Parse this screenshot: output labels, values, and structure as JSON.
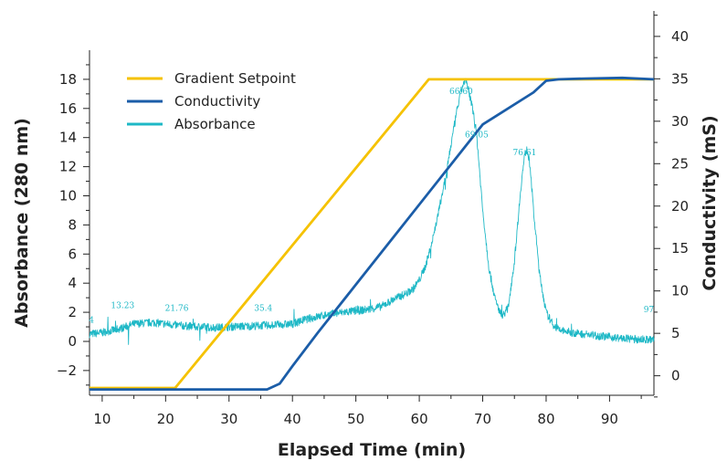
{
  "chart_data": {
    "type": "line",
    "xlabel": "Elapsed Time (min)",
    "ylabel_left": "Absorbance (280 nm)",
    "ylabel_right": "Conductivity (mS)",
    "xlim": [
      8,
      97
    ],
    "ylim_left": [
      -3.7,
      20
    ],
    "ylim_right": [
      -2.3,
      43
    ],
    "x_ticks": [
      10,
      20,
      30,
      40,
      50,
      60,
      70,
      80,
      90
    ],
    "y_ticks_left": [
      -2,
      0,
      2,
      4,
      6,
      8,
      10,
      12,
      14,
      16,
      18
    ],
    "y_ticks_right": [
      0,
      5,
      10,
      15,
      20,
      25,
      30,
      35,
      40
    ],
    "legend_placement": "top-left",
    "grid": false,
    "series": [
      {
        "name": "Gradient Setpoint",
        "color": "#F5C200",
        "axis": "left",
        "x": [
          8,
          21.5,
          61.5,
          97
        ],
        "y": [
          -3.2,
          -3.2,
          18,
          18
        ]
      },
      {
        "name": "Conductivity",
        "color": "#1B5DA8",
        "axis": "left",
        "x": [
          8,
          36,
          38,
          40,
          44,
          50,
          60,
          70,
          78,
          80,
          82,
          86,
          92,
          97
        ],
        "y": [
          -3.3,
          -3.3,
          -2.9,
          -1.7,
          0.6,
          3.9,
          9.4,
          14.9,
          17.1,
          17.9,
          18.0,
          18.05,
          18.1,
          18.0
        ]
      },
      {
        "name": "Absorbance",
        "color": "#1EB8C6",
        "axis": "left",
        "x": [
          8,
          10,
          13,
          15,
          18,
          20,
          22,
          25,
          28,
          30,
          33,
          35.5,
          38,
          40,
          42,
          45,
          48,
          50,
          52,
          54,
          56,
          58,
          59,
          60,
          61,
          62,
          63,
          64,
          65,
          66,
          66.6,
          67.2,
          67.8,
          68.5,
          69.05,
          70,
          71,
          72,
          73,
          74,
          75,
          76,
          76.61,
          77,
          77.5,
          78,
          79,
          80,
          81,
          82,
          84,
          86,
          88,
          90,
          92,
          94,
          97
        ],
        "y": [
          0.5,
          0.6,
          0.9,
          1.2,
          1.3,
          1.2,
          1.1,
          1.0,
          0.95,
          1.0,
          1.05,
          1.1,
          1.15,
          1.2,
          1.5,
          1.8,
          2.0,
          2.1,
          2.2,
          2.4,
          2.9,
          3.3,
          3.6,
          4.2,
          5.2,
          6.8,
          8.8,
          11.0,
          13.5,
          16.0,
          17.2,
          18.0,
          17.2,
          15.8,
          14.2,
          9.0,
          5.0,
          2.8,
          1.7,
          2.3,
          5.5,
          10.5,
          12.8,
          13.2,
          12.0,
          9.0,
          4.5,
          2.0,
          1.2,
          0.8,
          0.6,
          0.5,
          0.4,
          0.3,
          0.2,
          0.15,
          0.1
        ]
      }
    ],
    "peak_labels": [
      {
        "text": "4",
        "x": 8.3,
        "y": 1.3
      },
      {
        "text": "13.23",
        "x": 13.23,
        "y": 2.3
      },
      {
        "text": "21.76",
        "x": 21.76,
        "y": 2.1
      },
      {
        "text": "35.4",
        "x": 35.4,
        "y": 2.1
      },
      {
        "text": "66.60",
        "x": 66.6,
        "y": 17.0
      },
      {
        "text": "69.05",
        "x": 69.05,
        "y": 14.0
      },
      {
        "text": "76.61",
        "x": 76.61,
        "y": 12.8
      },
      {
        "text": "97",
        "x": 96.2,
        "y": 2.0
      }
    ]
  }
}
